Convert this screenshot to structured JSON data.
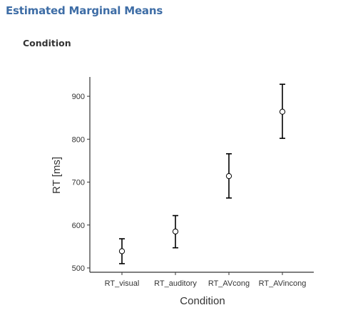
{
  "header": {
    "title": "Estimated Marginal Means"
  },
  "section": {
    "title": "Condition"
  },
  "chart_data": {
    "type": "scatter",
    "title": "",
    "xlabel": "Condition",
    "ylabel": "RT [ms]",
    "categories": [
      "RT_visual",
      "RT_auditory",
      "RT_AVcong",
      "RT_AVincong"
    ],
    "series": [
      {
        "values": [
          539,
          585,
          714,
          864
        ],
        "error_low": [
          510,
          547,
          663,
          802
        ],
        "error_high": [
          568,
          622,
          766,
          928
        ]
      }
    ],
    "ylim": [
      490,
      945
    ],
    "yticks": [
      500,
      600,
      700,
      800,
      900
    ],
    "grid": false,
    "legend": "none",
    "colors": {
      "axis": "#333333",
      "marker_fill": "#ffffff",
      "marker_stroke": "#000000",
      "errorbar": "#000000",
      "tick_label": "#333333"
    }
  }
}
